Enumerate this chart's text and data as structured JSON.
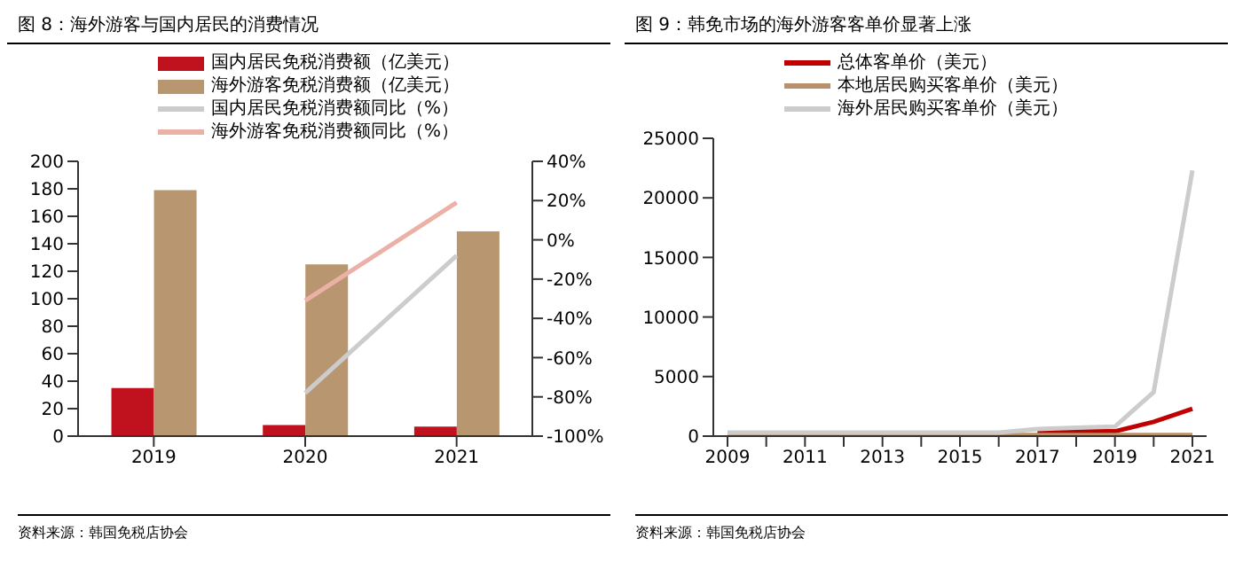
{
  "chart_data": [
    {
      "type": "bar",
      "title": "图 8：海外游客与国内居民的消费情况",
      "categories": [
        "2019",
        "2020",
        "2021"
      ],
      "series": [
        {
          "name": "国内居民免税消费额（亿美元）",
          "color": "#c0121e",
          "values": [
            35,
            8,
            7
          ]
        },
        {
          "name": "海外游客免税消费额（亿美元）",
          "color": "#b8966f",
          "values": [
            179,
            125,
            149
          ]
        },
        {
          "name": "国内居民免税消费额同比（%）",
          "color": "#cccccc",
          "type": "line",
          "axis": "y2",
          "values": [
            null,
            -78,
            -8
          ]
        },
        {
          "name": "海外游客免税消费额同比（%）",
          "color": "#ecb1a6",
          "type": "line",
          "axis": "y2",
          "values": [
            null,
            -31,
            19
          ]
        }
      ],
      "ylim": [
        0,
        200
      ],
      "yticks": [
        0,
        20,
        40,
        60,
        80,
        100,
        120,
        140,
        160,
        180,
        200
      ],
      "y2lim": [
        -100,
        40
      ],
      "y2ticks": [
        {
          "value": -100,
          "label": "-100%"
        },
        {
          "value": -80,
          "label": "-80%"
        },
        {
          "value": -60,
          "label": "-60%"
        },
        {
          "value": -40,
          "label": "-40%"
        },
        {
          "value": -20,
          "label": "-20%"
        },
        {
          "value": 0,
          "label": "0%"
        },
        {
          "value": 20,
          "label": "20%"
        },
        {
          "value": 40,
          "label": "40%"
        }
      ],
      "legend": "top",
      "annotations": [
        "资料来源：韩国免税店协会"
      ]
    },
    {
      "type": "line",
      "title": "图 9：韩免市场的海外游客客单价显著上涨",
      "categories": [
        "2009",
        null,
        "2011",
        null,
        "2013",
        null,
        "2015",
        null,
        "2017",
        null,
        "2019",
        null,
        "2021"
      ],
      "series": [
        {
          "name": "总体客单价（美元）",
          "color": "#c00000",
          "values": [
            null,
            null,
            null,
            null,
            null,
            null,
            null,
            null,
            300,
            400,
            400,
            1200,
            2300
          ]
        },
        {
          "name": "本地居民购买客单价（美元）",
          "color": "#b8916a",
          "values": [
            100,
            100,
            100,
            100,
            100,
            100,
            100,
            100,
            100,
            100,
            100,
            100,
            100
          ]
        },
        {
          "name": "海外居民购买客单价（美元）",
          "color": "#cccccc",
          "values": [
            300,
            300,
            300,
            300,
            300,
            300,
            300,
            300,
            600,
            700,
            800,
            3700,
            22300
          ]
        }
      ],
      "ylim": [
        0,
        25000
      ],
      "yticks": [
        0,
        5000,
        10000,
        15000,
        20000,
        25000
      ],
      "legend": "top",
      "annotations": [
        "资料来源：韩国免税店协会"
      ]
    }
  ]
}
